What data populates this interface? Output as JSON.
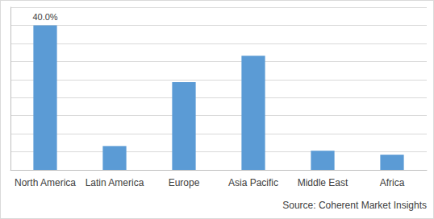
{
  "chart_data": {
    "type": "bar",
    "categories": [
      "North America",
      "Latin America",
      "Europe",
      "Asia Pacific",
      "Middle East",
      "Africa"
    ],
    "values": [
      40,
      6.6,
      24.3,
      31.6,
      5.3,
      4.2
    ],
    "value_labels": [
      "40.0%",
      null,
      null,
      null,
      null,
      null
    ],
    "color": "#5b9bd5",
    "ylim": [
      0,
      45
    ],
    "yticks": [
      0,
      5,
      10,
      15,
      20,
      25,
      30,
      35,
      40,
      45
    ],
    "grid": true,
    "tick_labels": "x",
    "annotations": [
      "Source: Coherent Market Insights"
    ]
  }
}
